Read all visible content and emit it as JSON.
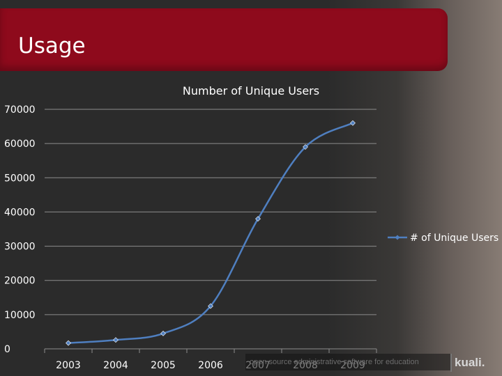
{
  "slide": {
    "title": "Usage",
    "footer_text": "open source administrative software for education",
    "logo_text": "kuali."
  },
  "colors": {
    "banner": "#8e0a1c",
    "series": "#4f7fc0",
    "grid": "#8c8c8c",
    "text": "#ffffff"
  },
  "chart_data": {
    "type": "line",
    "title": "Number of Unique Users",
    "xlabel": "",
    "ylabel": "",
    "categories": [
      "2003",
      "2004",
      "2005",
      "2006",
      "2007",
      "2008",
      "2009"
    ],
    "series": [
      {
        "name": "# of Unique Users",
        "values": [
          1700,
          2600,
          4500,
          12500,
          38000,
          59000,
          66000
        ]
      }
    ],
    "ylim": [
      0,
      70000
    ],
    "yticks": [
      0,
      10000,
      20000,
      30000,
      40000,
      50000,
      60000,
      70000
    ],
    "grid": true,
    "legend": "right",
    "marker": "diamond"
  }
}
